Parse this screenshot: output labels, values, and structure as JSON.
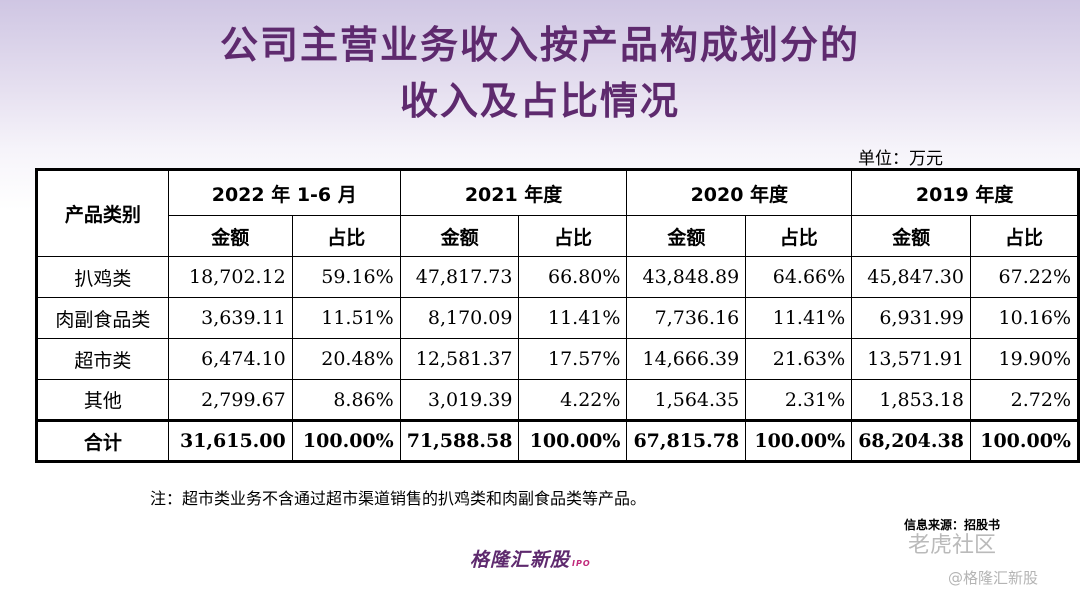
{
  "title_line1": "公司主营业务收入按产品构成划分的",
  "title_line2": "收入及占比情况",
  "unit": "单位：万元",
  "table": {
    "category_header": "产品类别",
    "periods": [
      "2022 年 1-6 月",
      "2021 年度",
      "2020 年度",
      "2019 年度"
    ],
    "sub_amount": "金额",
    "sub_ratio": "占比",
    "rows": [
      {
        "category": "扒鸡类",
        "values": [
          "18,702.12",
          "59.16%",
          "47,817.73",
          "66.80%",
          "43,848.89",
          "64.66%",
          "45,847.30",
          "67.22%"
        ]
      },
      {
        "category": "肉副食品类",
        "values": [
          "3,639.11",
          "11.51%",
          "8,170.09",
          "11.41%",
          "7,736.16",
          "11.41%",
          "6,931.99",
          "10.16%"
        ]
      },
      {
        "category": "超市类",
        "values": [
          "6,474.10",
          "20.48%",
          "12,581.37",
          "17.57%",
          "14,666.39",
          "21.63%",
          "13,571.91",
          "19.90%"
        ]
      },
      {
        "category": "其他",
        "values": [
          "2,799.67",
          "8.86%",
          "3,019.39",
          "4.22%",
          "1,564.35",
          "2.31%",
          "1,853.18",
          "2.72%"
        ]
      }
    ],
    "total": {
      "category": "合计",
      "values": [
        "31,615.00",
        "100.00%",
        "71,588.58",
        "100.00%",
        "67,815.78",
        "100.00%",
        "68,204.38",
        "100.00%"
      ]
    }
  },
  "note": "注：超市类业务不含通过超市渠道销售的扒鸡类和肉副食品类等产品。",
  "source": "信息来源：招股书",
  "logo": {
    "text": "格隆汇新股",
    "suffix": "IPO"
  },
  "watermark_bg": {
    "text": "格隆汇新股",
    "suffix": "IPO"
  },
  "watermark1": "老虎社区",
  "watermark2": "@格隆汇新股"
}
